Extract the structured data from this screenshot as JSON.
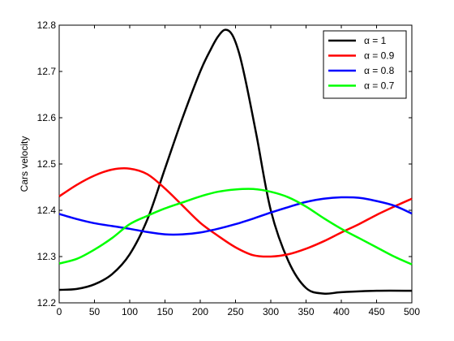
{
  "chart_data": {
    "type": "line",
    "title": "",
    "xlabel": "",
    "ylabel": "Cars velocity",
    "xlim": [
      0,
      500
    ],
    "ylim": [
      12.2,
      12.8
    ],
    "xticks": [
      0,
      50,
      100,
      150,
      200,
      250,
      300,
      350,
      400,
      450,
      500
    ],
    "yticks": [
      12.2,
      12.3,
      12.4,
      12.5,
      12.6,
      12.7,
      12.8
    ],
    "ytick_labels": [
      "12.2",
      "12.3",
      "12.4",
      "12.5",
      "12.6",
      "12.7",
      "12.8"
    ],
    "grid": false,
    "legend_position": "top-right",
    "series": [
      {
        "name": "α = 1",
        "color": "#000000",
        "x": [
          0,
          25,
          50,
          75,
          100,
          125,
          150,
          175,
          200,
          215,
          225,
          235,
          245,
          255,
          265,
          280,
          300,
          325,
          350,
          375,
          400,
          450,
          500
        ],
        "y": [
          12.228,
          12.23,
          12.24,
          12.262,
          12.305,
          12.38,
          12.49,
          12.6,
          12.7,
          12.748,
          12.775,
          12.79,
          12.78,
          12.74,
          12.675,
          12.56,
          12.4,
          12.29,
          12.232,
          12.22,
          12.223,
          12.226,
          12.226
        ]
      },
      {
        "name": "α = 0.9",
        "color": "#ff0000",
        "x": [
          0,
          25,
          50,
          75,
          100,
          125,
          150,
          175,
          200,
          225,
          250,
          275,
          300,
          325,
          350,
          375,
          400,
          425,
          450,
          475,
          500
        ],
        "y": [
          12.43,
          12.455,
          12.475,
          12.488,
          12.49,
          12.478,
          12.447,
          12.41,
          12.373,
          12.345,
          12.32,
          12.303,
          12.3,
          12.305,
          12.317,
          12.333,
          12.352,
          12.37,
          12.39,
          12.408,
          12.425
        ]
      },
      {
        "name": "α = 0.8",
        "color": "#0000ff",
        "x": [
          0,
          25,
          50,
          75,
          100,
          125,
          150,
          175,
          200,
          225,
          250,
          275,
          300,
          325,
          350,
          375,
          400,
          425,
          450,
          475,
          500
        ],
        "y": [
          12.392,
          12.381,
          12.372,
          12.366,
          12.36,
          12.353,
          12.348,
          12.348,
          12.352,
          12.36,
          12.37,
          12.382,
          12.395,
          12.407,
          12.418,
          12.425,
          12.428,
          12.427,
          12.42,
          12.41,
          12.393
        ]
      },
      {
        "name": "α = 0.7",
        "color": "#00ff00",
        "x": [
          0,
          25,
          50,
          75,
          100,
          125,
          150,
          175,
          200,
          225,
          250,
          275,
          300,
          325,
          350,
          375,
          400,
          425,
          450,
          475,
          500
        ],
        "y": [
          12.285,
          12.295,
          12.315,
          12.34,
          12.37,
          12.388,
          12.404,
          12.417,
          12.43,
          12.44,
          12.445,
          12.446,
          12.44,
          12.428,
          12.408,
          12.383,
          12.36,
          12.34,
          12.32,
          12.3,
          12.283
        ]
      }
    ]
  }
}
